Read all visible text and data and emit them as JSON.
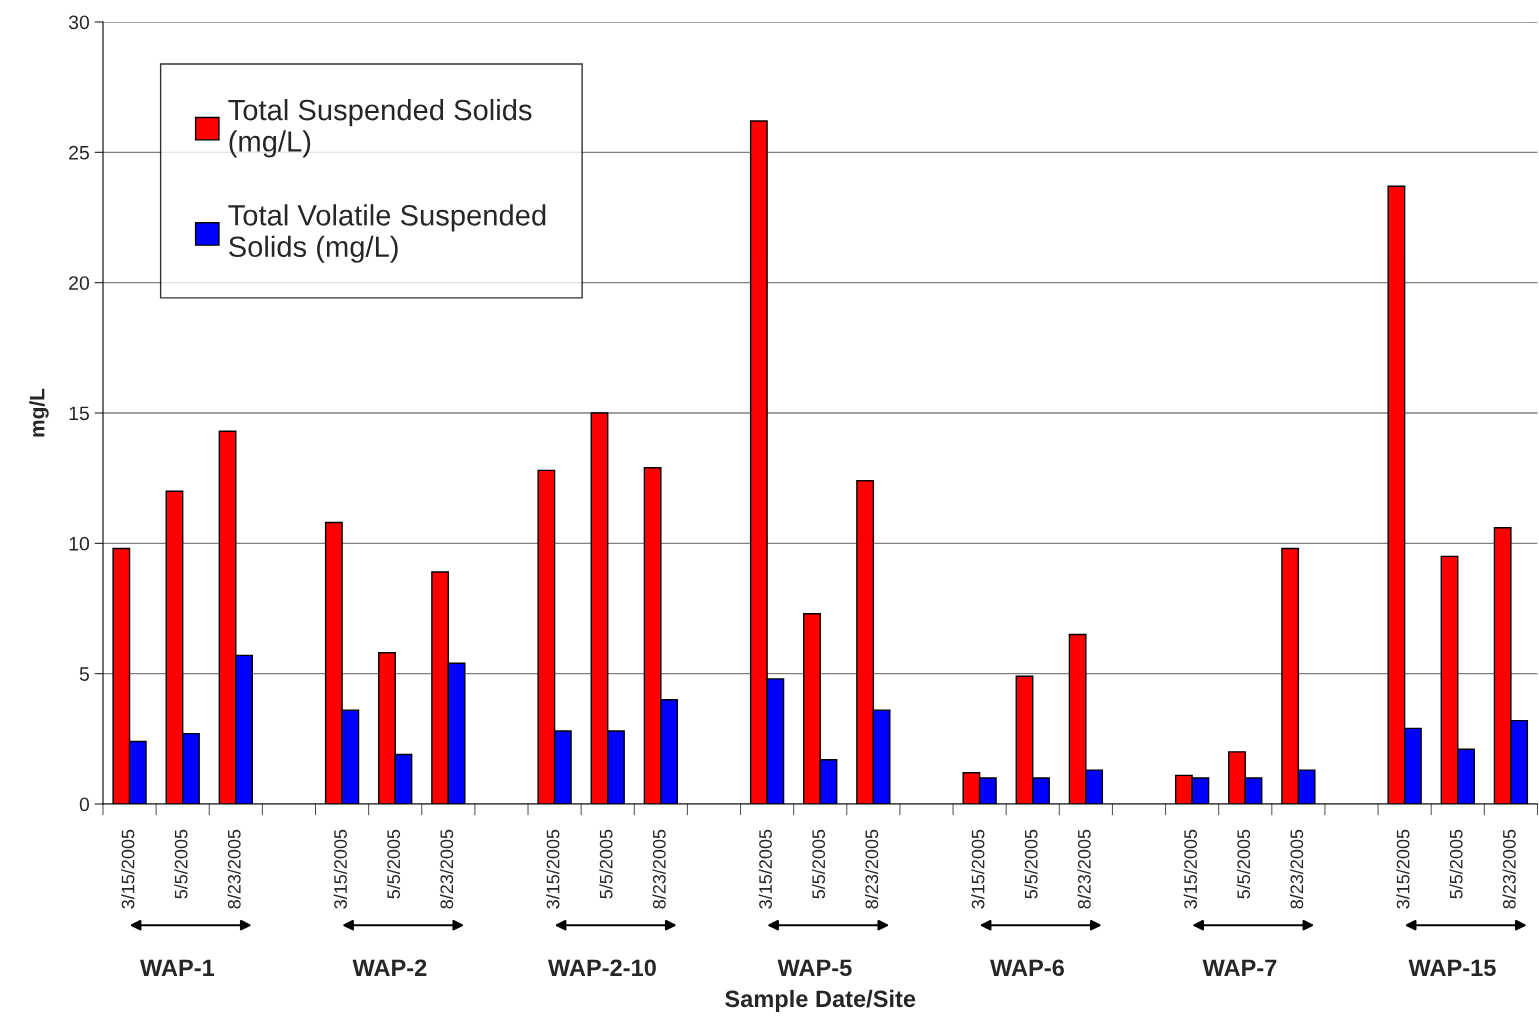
{
  "chart_data": {
    "type": "bar",
    "xlabel": "Sample Date/Site",
    "ylabel": "mg/L",
    "categories": [
      "3/15/2005",
      "5/5/2005",
      "8/23/2005",
      null,
      "3/15/2005",
      "5/5/2005",
      "8/23/2005",
      null,
      "3/15/2005",
      "5/5/2005",
      "8/23/2005",
      null,
      "3/15/2005",
      "5/5/2005",
      "8/23/2005",
      null,
      "3/15/2005",
      "5/5/2005",
      "8/23/2005",
      null,
      "3/15/2005",
      "5/5/2005",
      "8/23/2005",
      null,
      "3/15/2005",
      "5/5/2005",
      "8/23/2005"
    ],
    "series": [
      {
        "name": "Total Suspended Solids (mg/L)",
        "color": "#ff0000",
        "values": [
          9.8,
          12.0,
          14.3,
          null,
          10.8,
          5.8,
          8.9,
          null,
          12.8,
          15.0,
          12.9,
          null,
          26.2,
          7.3,
          12.4,
          null,
          1.2,
          4.9,
          6.5,
          null,
          1.1,
          2.0,
          9.8,
          null,
          23.7,
          9.5,
          10.6
        ]
      },
      {
        "name": "Total Volatile Suspended Solids (mg/L)",
        "color": "#0000ff",
        "values": [
          2.4,
          2.7,
          5.7,
          null,
          3.6,
          1.9,
          5.4,
          null,
          2.8,
          2.8,
          4.0,
          null,
          4.8,
          1.7,
          3.6,
          null,
          1.0,
          1.0,
          1.3,
          null,
          1.0,
          1.0,
          1.3,
          null,
          2.9,
          2.1,
          3.2
        ]
      }
    ],
    "ylim": [
      0,
      30
    ],
    "yticks": [
      0,
      5,
      10,
      15,
      20,
      25,
      30
    ],
    "grid": "y",
    "legend": "top left",
    "annotations": [
      "WAP-1",
      "WAP-2",
      "WAP-2-10",
      "WAP-5",
      "WAP-6",
      "WAP-7",
      "WAP-15"
    ]
  }
}
